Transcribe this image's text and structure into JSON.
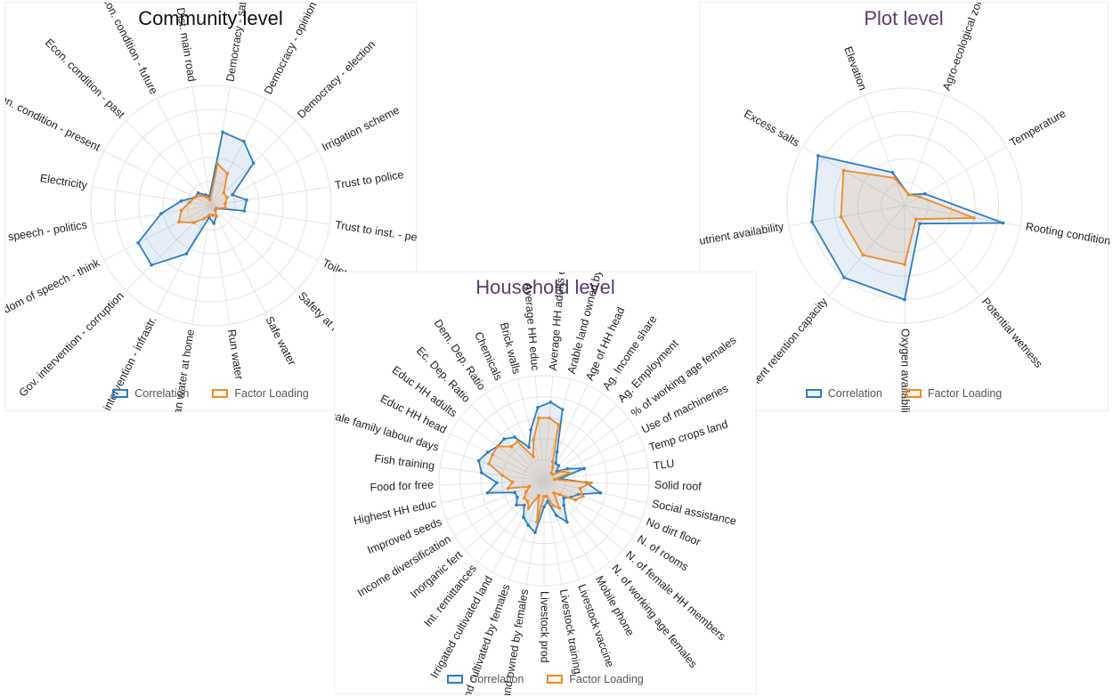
{
  "colors": {
    "correlation": "#2e7dc2",
    "factor": "#f08a24",
    "title_black": "#111111",
    "title_purple": "#5b3b6e"
  },
  "legend": {
    "correlation": "Correlation",
    "factor": "Factor Loading"
  },
  "chart_data": [
    {
      "type": "radar",
      "title": "Community level",
      "rlim": [
        0,
        1
      ],
      "grid": true,
      "legend_position": "bottom",
      "categories": [
        "Democracy - satisfaction",
        "Democracy - opinion",
        "Democracy - election",
        "Irrigation scheme",
        "Trust to police",
        "Trust to inst. - people",
        "Toilet",
        "Safety at home",
        "Safe water",
        "Run water",
        "No clean water at home",
        "Gov. intervention - infrastr.",
        "Gov. intervention - corruption",
        "Freedom of speech - think",
        "Freedom of speech - politics",
        "Electricity",
        "Econ. condition - present",
        "Econ. condition - past",
        "Econ. condition - future",
        "Dist. main road"
      ],
      "series": [
        {
          "name": "Correlation",
          "values": [
            0.62,
            0.6,
            0.5,
            0.2,
            0.3,
            0.28,
            0.05,
            0.05,
            0.1,
            0.15,
            0.1,
            0.45,
            0.7,
            0.68,
            0.42,
            0.25,
            0.15,
            0.15,
            0.1,
            0.08
          ]
        },
        {
          "name": "Factor Loading",
          "values": [
            0.35,
            0.3,
            0.15,
            0.15,
            0.12,
            0.12,
            0.05,
            0.05,
            0.1,
            0.08,
            0.08,
            0.12,
            0.2,
            0.3,
            0.25,
            0.18,
            0.15,
            0.12,
            0.08,
            0.05
          ]
        }
      ]
    },
    {
      "type": "radar",
      "title": "Plot level",
      "rlim": [
        0,
        1
      ],
      "grid": true,
      "legend_position": "bottom",
      "categories": [
        "Agro-ecological zone",
        "Temperature",
        "Rooting conditions",
        "Potential wetness",
        "Oxygen availability",
        "Nutrient retention capacity",
        "Nutrient availability",
        "Excess salts",
        "Elevation"
      ],
      "series": [
        {
          "name": "Correlation",
          "values": [
            0.1,
            0.2,
            0.85,
            0.2,
            0.8,
            0.8,
            0.8,
            0.85,
            0.3
          ]
        },
        {
          "name": "Factor Loading",
          "values": [
            0.1,
            0.15,
            0.6,
            0.15,
            0.5,
            0.55,
            0.55,
            0.6,
            0.25
          ]
        }
      ]
    },
    {
      "type": "radar",
      "title": "Household level",
      "rlim": [
        0,
        1
      ],
      "grid": true,
      "legend_position": "bottom",
      "categories": [
        "Average HH adults ed",
        "Arable land owned by fem",
        "Age of HH head",
        "Ag. Income share",
        "Ag. Employment",
        "% of working age females",
        "Use of machineries",
        "Temp crops land",
        "TLU",
        "Solid roof",
        "Social assistance",
        "No dirt floor",
        "N. of rooms",
        "N. of female HH members",
        "N. of working age females",
        "Mobile phone",
        "Livestock vaccine",
        "Livestock training",
        "Livestock prod",
        "Land owned by females",
        "Land cultivated by females",
        "Irrigated cultivated land",
        "Int. remittances",
        "Inorganic fert",
        "Income diversification",
        "Improved seeds",
        "Highest HH educ",
        "Food for free",
        "Fish training",
        "Female family labour days",
        "Educ HH head",
        "Educ HH adults",
        "Ec. Dep. Ratio",
        "Dem. Dep. Ratio",
        "Chemicals",
        "Brick walls",
        "Average HH educ"
      ],
      "series": [
        {
          "name": "Correlation",
          "values": [
            0.75,
            0.7,
            0.3,
            0.2,
            0.2,
            0.15,
            0.25,
            0.4,
            0.15,
            0.4,
            0.55,
            0.35,
            0.3,
            0.25,
            0.3,
            0.45,
            0.35,
            0.2,
            0.25,
            0.5,
            0.45,
            0.4,
            0.3,
            0.35,
            0.3,
            0.3,
            0.55,
            0.45,
            0.6,
            0.65,
            0.6,
            0.55,
            0.55,
            0.5,
            0.35,
            0.5,
            0.7
          ]
        },
        {
          "name": "Factor Loading",
          "values": [
            0.6,
            0.55,
            0.2,
            0.15,
            0.1,
            0.1,
            0.2,
            0.25,
            0.1,
            0.45,
            0.35,
            0.4,
            0.35,
            0.2,
            0.15,
            0.3,
            0.25,
            0.15,
            0.15,
            0.4,
            0.15,
            0.3,
            0.25,
            0.25,
            0.2,
            0.15,
            0.35,
            0.3,
            0.4,
            0.55,
            0.55,
            0.55,
            0.45,
            0.45,
            0.25,
            0.4,
            0.6
          ]
        }
      ]
    }
  ]
}
